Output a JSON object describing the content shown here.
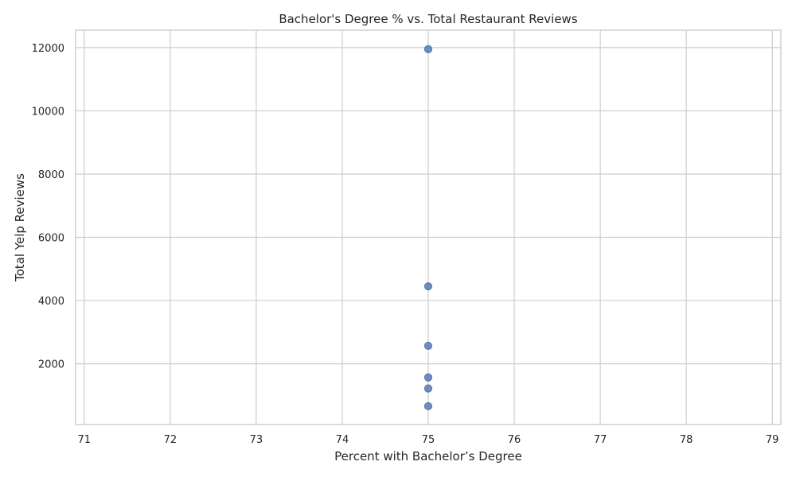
{
  "chart_data": {
    "type": "scatter",
    "title": "Bachelor's Degree % vs. Total Restaurant Reviews",
    "xlabel": "Percent with Bachelor’s Degree",
    "ylabel": "Total Yelp Reviews",
    "xlim": [
      70.9,
      79.1
    ],
    "ylim": [
      80,
      12550
    ],
    "x_ticks": [
      71,
      72,
      73,
      74,
      75,
      76,
      77,
      78,
      79
    ],
    "y_ticks": [
      2000,
      4000,
      6000,
      8000,
      10000,
      12000
    ],
    "grid": true,
    "points": [
      {
        "x": 75,
        "y": 11950
      },
      {
        "x": 75,
        "y": 4450
      },
      {
        "x": 75,
        "y": 2570
      },
      {
        "x": 75,
        "y": 1570
      },
      {
        "x": 75,
        "y": 1220
      },
      {
        "x": 75,
        "y": 660
      }
    ],
    "point_color": "#4c72b0"
  }
}
